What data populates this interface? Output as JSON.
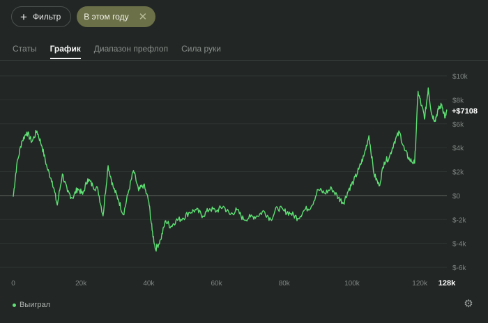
{
  "toolbar": {
    "filter_label": "Фильтр",
    "year_chip_label": "В этом году"
  },
  "tabs": [
    {
      "label": "Статы",
      "active": false
    },
    {
      "label": "График",
      "active": true
    },
    {
      "label": "Диапазон префлоп",
      "active": false
    },
    {
      "label": "Сила руки",
      "active": false
    }
  ],
  "legend": {
    "label": "Выиграл",
    "color": "#5fe074"
  },
  "icons": {
    "filter": "plus-icon",
    "close": "close-icon",
    "settings": "gear-icon"
  },
  "chart_data": {
    "type": "line",
    "title": "",
    "xlabel": "",
    "ylabel": "",
    "xlim": [
      0,
      128000
    ],
    "ylim": [
      -6000,
      10000
    ],
    "x_ticks": [
      "0",
      "20k",
      "40k",
      "60k",
      "80k",
      "100k",
      "120k"
    ],
    "x_end_label": "128k",
    "y_ticks": [
      "$10k",
      "$8k",
      "$6k",
      "$4k",
      "$2k",
      "$0",
      "$-2k",
      "$-4k",
      "$-6k"
    ],
    "current_value_label": "+$7108",
    "grid": true,
    "legend_position": "bottom-left",
    "series": [
      {
        "name": "Выиграл",
        "color": "#5fe074",
        "x": [
          0,
          1000,
          2500,
          4000,
          5500,
          7000,
          8500,
          10000,
          11500,
          13000,
          14500,
          16000,
          17500,
          19000,
          20500,
          22000,
          23500,
          25000,
          26500,
          28000,
          29500,
          31000,
          32500,
          34000,
          35500,
          37000,
          38500,
          40000,
          41000,
          42000,
          43500,
          45000,
          46500,
          48000,
          50000,
          52000,
          54000,
          56000,
          58000,
          60000,
          62000,
          64000,
          66000,
          68000,
          70000,
          72000,
          74000,
          76000,
          78000,
          80000,
          82000,
          84000,
          86000,
          88000,
          90000,
          92000,
          94000,
          96000,
          97500,
          99000,
          100500,
          102000,
          103500,
          105000,
          106500,
          108000,
          109500,
          111000,
          112500,
          114000,
          115500,
          117000,
          118500,
          119500,
          120500,
          121500,
          122500,
          123500,
          124500,
          125500,
          126500,
          127500,
          128000
        ],
        "y": [
          -100,
          2500,
          4500,
          5300,
          4500,
          5400,
          4100,
          2300,
          1200,
          -800,
          1800,
          300,
          -200,
          600,
          100,
          1400,
          800,
          500,
          -1700,
          2500,
          700,
          -300,
          -1600,
          300,
          2100,
          400,
          900,
          -500,
          -2900,
          -4500,
          -3700,
          -2100,
          -2600,
          -2100,
          -1900,
          -1400,
          -1200,
          -1700,
          -1100,
          -1300,
          -900,
          -1600,
          -1200,
          -2000,
          -1800,
          -1700,
          -1300,
          -2000,
          -1000,
          -1300,
          -1500,
          -1900,
          -1200,
          -900,
          500,
          200,
          600,
          -200,
          -600,
          500,
          1200,
          2200,
          3300,
          5000,
          1800,
          800,
          2800,
          3200,
          4500,
          5300,
          3800,
          3000,
          2700,
          8700,
          7500,
          6500,
          9000,
          6800,
          6300,
          7200,
          7600,
          6500,
          7100
        ]
      }
    ]
  }
}
